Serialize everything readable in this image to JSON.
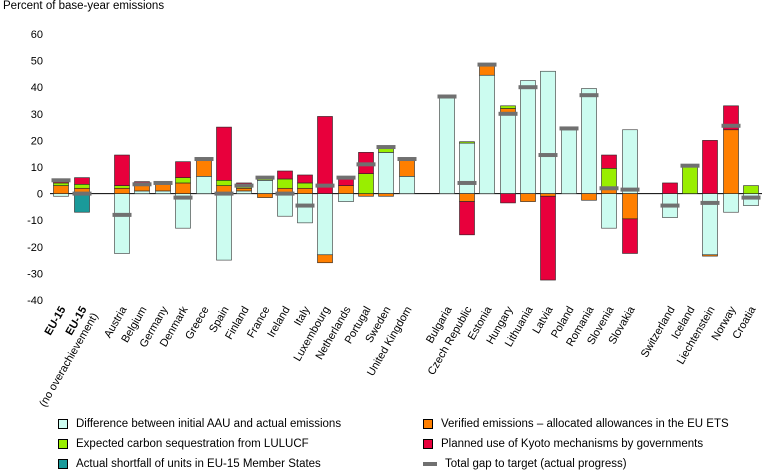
{
  "chart_data": {
    "type": "bar",
    "stacked": true,
    "ylabel": "Percent of base-year emissions",
    "ylim": [
      -40,
      60
    ],
    "yticks": [
      -40,
      -30,
      -20,
      -10,
      0,
      10,
      20,
      30,
      40,
      50,
      60
    ],
    "categories": [
      "EU-15",
      "EU-15 (no overachievement)",
      "Austria",
      "Belgium",
      "Germany",
      "Denmark",
      "Greece",
      "Spain",
      "Finland",
      "France",
      "Ireland",
      "Italy",
      "Luxembourg",
      "Netherlands",
      "Portugal",
      "Sweden",
      "United Kingdom",
      "Bulgaria",
      "Czech Republic",
      "Estonia",
      "Hungary",
      "Lithuania",
      "Latvia",
      "Poland",
      "Romania",
      "Slovenia",
      "Slovakia",
      "Switzerland",
      "Iceland",
      "Liechtenstein",
      "Norway",
      "Croatia"
    ],
    "bold_categories": [
      "EU-15",
      "EU-15"
    ],
    "series": [
      {
        "name": "Difference between initial AAU and actual emissions",
        "color": "#ccfcf0",
        "values": [
          -1,
          0,
          -22.5,
          1,
          1,
          -13,
          6.5,
          -25,
          1,
          5,
          -8.5,
          -11,
          -23,
          -3,
          0,
          15.5,
          6.5,
          36.5,
          19,
          44.5,
          30,
          42.5,
          46,
          24,
          39.5,
          -13,
          24,
          -9,
          0,
          -23,
          -7,
          -4.5
        ]
      },
      {
        "name": "Verified emissions – allocated allowances in the EU ETS",
        "color": "#ff7f00",
        "values": [
          3,
          2,
          2,
          2,
          3.5,
          4,
          6,
          3,
          1,
          -1.5,
          2,
          2,
          -3,
          3,
          -1,
          -1,
          6.5,
          0,
          -3,
          4,
          2,
          -3,
          -1,
          1,
          -2.5,
          2,
          -9.5,
          0,
          0,
          -0.5,
          24,
          0
        ]
      },
      {
        "name": "Expected carbon sequestration from LULUCF",
        "color": "#99ee00",
        "values": [
          1,
          1.5,
          1,
          0,
          0,
          2,
          0,
          2,
          1,
          1,
          3.5,
          2,
          0,
          0,
          7.5,
          1.5,
          0,
          0,
          0.5,
          0,
          1,
          0,
          0,
          0,
          0,
          7.5,
          0,
          0,
          10,
          0,
          0,
          3
        ]
      },
      {
        "name": "Planned use of Kyoto mechanisms by governments",
        "color": "#e8003c",
        "values": [
          1,
          2.5,
          11.5,
          1.5,
          0,
          6,
          0,
          20,
          1,
          0,
          3,
          3,
          29,
          3.5,
          8,
          0,
          0,
          0,
          -12.5,
          0,
          -3.5,
          0,
          -31.5,
          0,
          0,
          5,
          -13,
          4,
          0,
          20,
          9,
          0
        ]
      },
      {
        "name": "Actual shortfall of units in EU-15 Member States",
        "color": "#1a9a9a",
        "values": [
          0,
          -7,
          0,
          0,
          0,
          0,
          0,
          0,
          0,
          0,
          0,
          0,
          0,
          0,
          0,
          0,
          0,
          0,
          0,
          0,
          0,
          0,
          0,
          0,
          0,
          0,
          0,
          0,
          0,
          0,
          0,
          0
        ]
      }
    ],
    "total_gap": {
      "name": "Total gap to target (actual progress)",
      "color": "#707070",
      "values": [
        5,
        0,
        -8,
        3.5,
        4,
        -1.5,
        13,
        0,
        3,
        6,
        0,
        -4.5,
        3,
        6,
        11,
        17.5,
        13,
        36.5,
        4,
        48.5,
        30,
        40,
        14.5,
        24.5,
        37,
        2,
        1.5,
        -4.5,
        10.5,
        -3.5,
        25.5,
        -1.5
      ]
    },
    "legend_position": "bottom"
  }
}
